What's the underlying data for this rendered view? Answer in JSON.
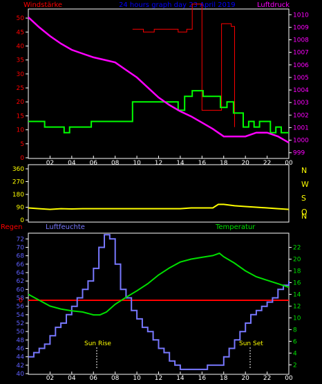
{
  "colors": {
    "background": "#000000",
    "axis": "#ffffff",
    "wind": "#00ff00",
    "gust": "#ff0000",
    "pressure": "#ff00ff",
    "direction": "#ffff00",
    "rain": "#ff0000",
    "humidity": "#7878ff",
    "temperature": "#00e000",
    "title": "#0000ff",
    "compass": "#ffff00",
    "tick_left": "#ff0000",
    "tick_right": "#ff00ff",
    "tick_dir": "#ffff00",
    "tick_hum": "#6060ff",
    "tick_temp": "#00e000",
    "sun": "#ffff00"
  },
  "header": {
    "left": "Windstärke",
    "center": "24 hours graph day  23 April 2019",
    "right": "Luftdruck"
  },
  "compass": [
    "N",
    "W",
    "S",
    "O",
    "N"
  ],
  "temp_header": {
    "rain": "Regen",
    "humidity": "Luftfeuchte",
    "temperature": "Temperatur"
  },
  "sun": {
    "rise": "Sun Rise",
    "set": "Sun Set"
  },
  "chart_data": [
    {
      "type": "line",
      "title": "24 hours graph day  23 April 2019",
      "y_left_label": "Windstärke",
      "y_right_label": "Luftdruck",
      "x_ticks": [
        "02",
        "04",
        "06",
        "08",
        "10",
        "12",
        "14",
        "16",
        "18",
        "20",
        "22",
        "00"
      ],
      "y_left_ticks": [
        "0",
        "5",
        "10",
        "15",
        "20",
        "25",
        "30",
        "35",
        "40",
        "45",
        "50"
      ],
      "y_right_ticks": [
        "999",
        "1000",
        "1001",
        "1002",
        "1003",
        "1004",
        "1005",
        "1006",
        "1007",
        "1008",
        "1009",
        "1010"
      ],
      "ylim_left": [
        0,
        53
      ],
      "ylim_right": [
        998.6,
        1010.4
      ],
      "xlim": [
        0,
        24
      ],
      "series": [
        {
          "name": "Windstärke",
          "axis": "left",
          "step": true,
          "x": [
            0,
            1.5,
            3.3,
            3.8,
            4.3,
            5.8,
            9.6,
            13.8,
            14.4,
            15.1,
            16.1,
            17.7,
            18.3,
            18.9,
            19.8,
            20.3,
            20.8,
            21.3,
            22.3,
            22.8,
            23.3,
            24
          ],
          "y": [
            13,
            11,
            9,
            11,
            11,
            13,
            20,
            17,
            22,
            24,
            22,
            18,
            20,
            16,
            11,
            13,
            11,
            13,
            9,
            11,
            9,
            9
          ]
        },
        {
          "name": "Böen",
          "axis": "left",
          "step": true,
          "x": [
            9.6,
            10.6,
            11.6,
            13.8,
            14.6,
            15.1,
            16.0,
            17.8,
            18.7,
            19.0
          ],
          "y": [
            46,
            45,
            46,
            45,
            46,
            55,
            17,
            48,
            47,
            11
          ]
        },
        {
          "name": "Luftdruck",
          "axis": "right",
          "x": [
            0,
            1,
            2,
            3,
            4,
            5,
            6,
            7,
            8,
            9,
            10,
            11,
            12,
            13,
            14,
            15,
            16,
            17,
            18,
            19,
            20,
            21,
            22,
            23,
            24
          ],
          "y": [
            1009.8,
            1009.0,
            1008.3,
            1007.7,
            1007.2,
            1006.9,
            1006.6,
            1006.4,
            1006.2,
            1005.6,
            1005.0,
            1004.2,
            1003.4,
            1002.8,
            1002.3,
            1001.9,
            1001.4,
            1000.9,
            1000.3,
            1000.3,
            1000.3,
            1000.6,
            1000.6,
            1000.3,
            999.8
          ]
        }
      ]
    },
    {
      "type": "line",
      "y_ticks": [
        "0",
        "90",
        "180",
        "270",
        "360"
      ],
      "ylim": [
        0,
        360
      ],
      "xlim": [
        0,
        24
      ],
      "x_ticks": [
        "02",
        "04",
        "06",
        "08",
        "10",
        "12",
        "14",
        "16",
        "18",
        "20",
        "22",
        "00"
      ],
      "series": [
        {
          "name": "Windrichtung",
          "x": [
            0,
            1,
            2,
            3,
            4,
            5,
            6,
            7,
            8,
            9,
            10,
            11,
            12,
            13,
            14,
            15,
            16,
            17,
            17.5,
            18,
            19,
            20,
            21,
            22,
            23,
            24
          ],
          "y": [
            85,
            80,
            75,
            80,
            78,
            80,
            80,
            80,
            80,
            80,
            80,
            80,
            80,
            80,
            80,
            85,
            85,
            85,
            110,
            110,
            100,
            95,
            90,
            85,
            80,
            75
          ]
        }
      ]
    },
    {
      "type": "line",
      "y_left_ticks": [
        "40",
        "42",
        "44",
        "46",
        "48",
        "50",
        "52",
        "54",
        "56",
        "58",
        "60",
        "62",
        "64",
        "66",
        "68",
        "70",
        "72"
      ],
      "y_right_ticks": [
        "2",
        "4",
        "6",
        "8",
        "10",
        "12",
        "14",
        "16",
        "18",
        "20",
        "22"
      ],
      "rain_tick": "0",
      "ylim_humidity": [
        40,
        73.2
      ],
      "ylim_temperature": [
        0.5,
        24.3
      ],
      "xlim": [
        0,
        24
      ],
      "x_ticks": [
        "02",
        "04",
        "06",
        "08",
        "10",
        "12",
        "14",
        "16",
        "18",
        "20",
        "22",
        "00"
      ],
      "series": [
        {
          "name": "Regen",
          "x": [
            0,
            24
          ],
          "y": [
            0,
            0
          ]
        },
        {
          "name": "Luftfeuchte",
          "step": true,
          "x": [
            0,
            0.5,
            1,
            1.5,
            2,
            2.5,
            3,
            3.5,
            4,
            4.5,
            5,
            5.5,
            6,
            6.5,
            7,
            7.5,
            8,
            8.5,
            9,
            9.5,
            10,
            10.5,
            11,
            11.5,
            12,
            12.5,
            13,
            13.5,
            14,
            14.5,
            15,
            15.5,
            16,
            16.5,
            17,
            17.5,
            18,
            18.5,
            19,
            19.5,
            20,
            20.5,
            21,
            21.5,
            22,
            22.5,
            23,
            23.5,
            24
          ],
          "y": [
            44,
            45,
            46,
            47,
            49,
            51,
            52,
            54,
            56,
            58,
            60,
            62,
            65,
            70,
            73,
            72,
            66,
            60,
            58,
            55,
            53,
            51,
            50,
            48,
            46,
            45,
            43,
            42,
            41,
            41,
            41,
            41,
            41,
            42,
            42,
            42,
            44,
            46,
            48,
            50,
            52,
            54,
            55,
            56,
            57,
            58,
            60,
            61,
            62
          ]
        },
        {
          "name": "Temperatur",
          "x": [
            0,
            1,
            2,
            3,
            4,
            5,
            6,
            6.6,
            7.2,
            8,
            9,
            10,
            11,
            12,
            13,
            14,
            15,
            16,
            17,
            17.6,
            18,
            19,
            20,
            21,
            22,
            23,
            24
          ],
          "y": [
            14,
            13,
            12,
            11.5,
            11.2,
            11,
            10.5,
            10.5,
            11,
            12.3,
            13.5,
            14.6,
            15.8,
            17.3,
            18.5,
            19.5,
            20,
            20.3,
            20.6,
            21,
            20.4,
            19.3,
            18,
            17,
            16.4,
            15.8,
            15.2
          ]
        }
      ],
      "annotations": [
        "Sun Rise",
        "Sun Set"
      ]
    }
  ]
}
